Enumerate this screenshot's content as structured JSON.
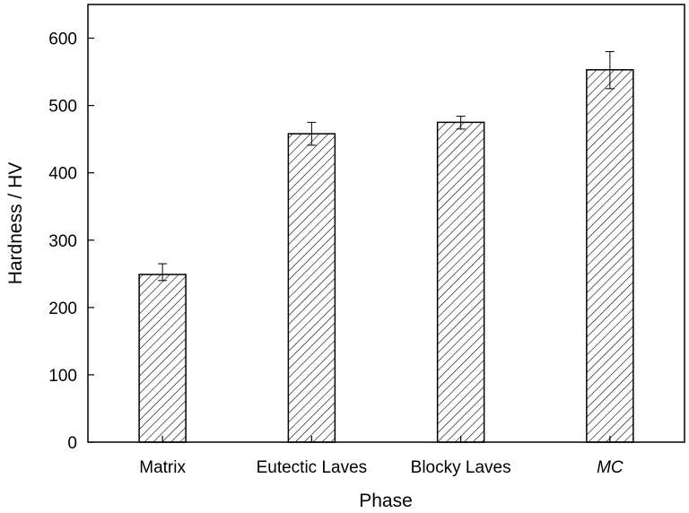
{
  "chart_data": {
    "type": "bar",
    "title": "",
    "xlabel": "Phase",
    "ylabel": "Hardness / HV",
    "categories": [
      "Matrix",
      "Eutectic Laves",
      "Blocky Laves",
      "MC"
    ],
    "category_italic": [
      false,
      false,
      false,
      true
    ],
    "values": [
      249,
      458,
      475,
      553
    ],
    "error_low": [
      240,
      441,
      465,
      525
    ],
    "error_high": [
      265,
      475,
      484,
      580
    ],
    "ylim": [
      0,
      650
    ],
    "yticks": [
      0,
      100,
      200,
      300,
      400,
      500,
      600
    ],
    "grid": false,
    "legend": "none",
    "bar_fill": "hatched",
    "bar_color": "#000000"
  }
}
